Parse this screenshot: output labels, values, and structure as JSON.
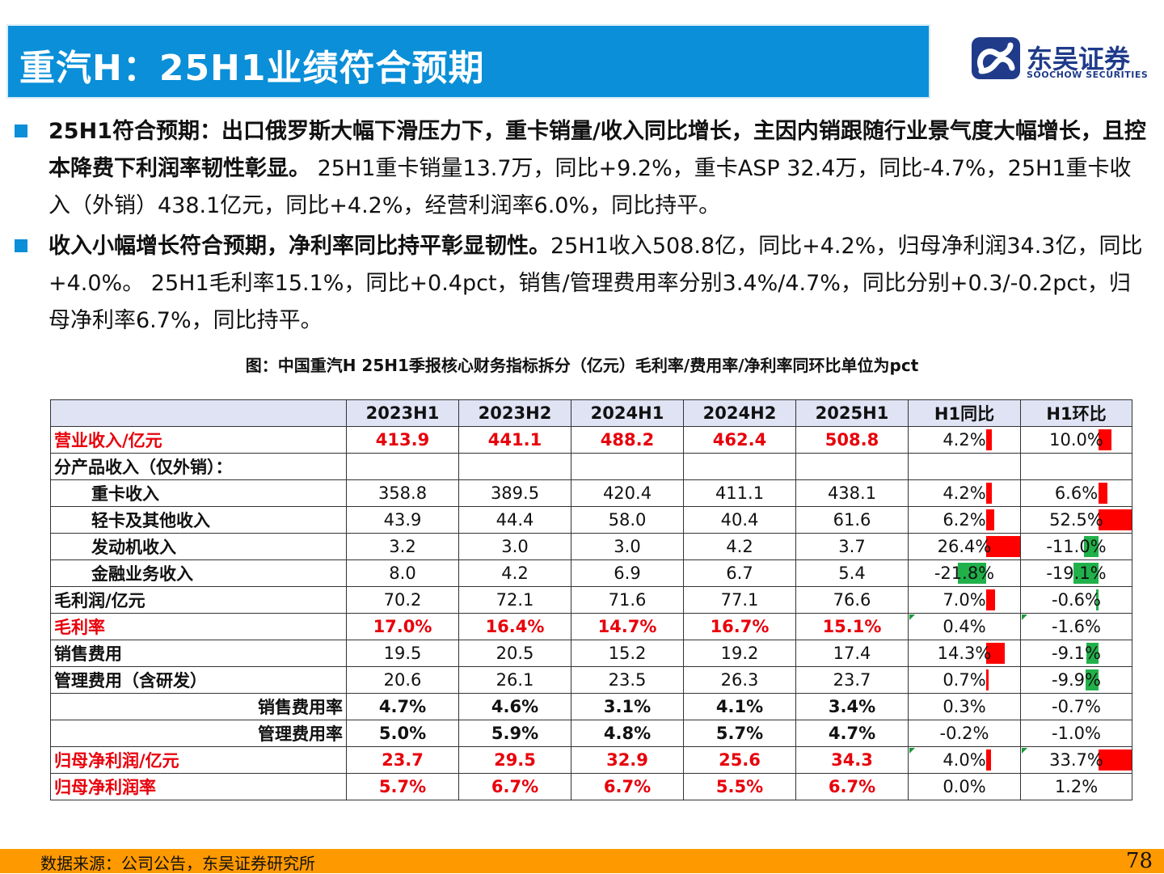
{
  "header": {
    "title": "重汽H：25H1业绩符合预期",
    "logo_cn": "东吴证券",
    "logo_en": "SOOCHOW SECURITIES"
  },
  "bullets": [
    {
      "bold": "25H1符合预期：出口俄罗斯大幅下滑压力下，重卡销量/收入同比增长，主因内销跟随行业景气度大幅增长，且控本降费下利润率韧性彰显。",
      "text": " 25H1重卡销量13.7万，同比+9.2%，重卡ASP 32.4万，同比-4.7%，25H1重卡收入（外销）438.1亿元，同比+4.2%，经营利润率6.0%，同比持平。"
    },
    {
      "bold": "收入小幅增长符合预期，净利率同比持平彰显韧性。",
      "text": "25H1收入508.8亿，同比+4.2%，归母净利润34.3亿，同比+4.0%。 25H1毛利率15.1%，同比+0.4pct，销售/管理费用率分别3.4%/4.7%，同比分别+0.3/-0.2pct，归母净利率6.7%，同比持平。"
    }
  ],
  "figure_caption": "图：中国重汽H 25H1季报核心财务指标拆分（亿元）毛利率/费用率/净利率同环比单位为pct",
  "table": {
    "columns": [
      "",
      "2023H1",
      "2023H2",
      "2024H1",
      "2024H2",
      "2025H1",
      "H1同比",
      "H1环比"
    ],
    "rows": [
      {
        "label": "营业收入/亿元",
        "style": "red",
        "indent": "none",
        "values": [
          "413.9",
          "441.1",
          "488.2",
          "462.4",
          "508.8"
        ],
        "yoy": "4.2%",
        "yoy_v": 4.2,
        "qoq": "10.0%",
        "qoq_v": 10.0,
        "tri": false
      },
      {
        "label": "分产品收入（仅外销）：",
        "style": "plain",
        "indent": "none",
        "values": [
          "",
          "",
          "",
          "",
          ""
        ],
        "yoy": "",
        "yoy_v": 0,
        "qoq": "",
        "qoq_v": 0,
        "tri": false
      },
      {
        "label": "重卡收入",
        "style": "plain",
        "indent": "indent",
        "values": [
          "358.8",
          "389.5",
          "420.4",
          "411.1",
          "438.1"
        ],
        "yoy": "4.2%",
        "yoy_v": 4.2,
        "qoq": "6.6%",
        "qoq_v": 6.6,
        "tri": false
      },
      {
        "label": "轻卡及其他收入",
        "style": "plain",
        "indent": "indent",
        "values": [
          "43.9",
          "44.4",
          "58.0",
          "40.4",
          "61.6"
        ],
        "yoy": "6.2%",
        "yoy_v": 6.2,
        "qoq": "52.5%",
        "qoq_v": 52.5,
        "tri": false
      },
      {
        "label": "发动机收入",
        "style": "plain",
        "indent": "indent",
        "values": [
          "3.2",
          "3.0",
          "3.0",
          "4.2",
          "3.7"
        ],
        "yoy": "26.4%",
        "yoy_v": 26.4,
        "qoq": "-11.0%",
        "qoq_v": -11.0,
        "tri": false
      },
      {
        "label": "金融业务收入",
        "style": "plain",
        "indent": "indent",
        "values": [
          "8.0",
          "4.2",
          "6.9",
          "6.7",
          "5.4"
        ],
        "yoy": "-21.8%",
        "yoy_v": -21.8,
        "qoq": "-19.1%",
        "qoq_v": -19.1,
        "tri": false
      },
      {
        "label": "毛利润/亿元",
        "style": "plain",
        "indent": "none",
        "values": [
          "70.2",
          "72.1",
          "71.6",
          "77.1",
          "76.6"
        ],
        "yoy": "7.0%",
        "yoy_v": 7.0,
        "qoq": "-0.6%",
        "qoq_v": -0.6,
        "tri": false
      },
      {
        "label": "毛利率",
        "style": "red",
        "indent": "none",
        "values": [
          "17.0%",
          "16.4%",
          "14.7%",
          "16.7%",
          "15.1%"
        ],
        "yoy": "0.4%",
        "yoy_v": 0,
        "qoq": "-1.6%",
        "qoq_v": 0,
        "tri": true
      },
      {
        "label": "销售费用",
        "style": "plain",
        "indent": "none",
        "values": [
          "19.5",
          "20.5",
          "15.2",
          "19.2",
          "17.4"
        ],
        "yoy": "14.3%",
        "yoy_v": 14.3,
        "qoq": "-9.1%",
        "qoq_v": -9.1,
        "tri": false
      },
      {
        "label": "管理费用（含研发）",
        "style": "plain",
        "indent": "none",
        "values": [
          "20.6",
          "26.1",
          "23.5",
          "26.3",
          "23.7"
        ],
        "yoy": "0.7%",
        "yoy_v": 0.7,
        "qoq": "-9.9%",
        "qoq_v": -9.9,
        "tri": false
      },
      {
        "label": "销售费用率",
        "style": "boldrow",
        "indent": "right",
        "values": [
          "4.7%",
          "4.6%",
          "3.1%",
          "4.1%",
          "3.4%"
        ],
        "yoy": "0.3%",
        "yoy_v": 0,
        "qoq": "-0.7%",
        "qoq_v": 0,
        "tri": false
      },
      {
        "label": "管理费用率",
        "style": "boldrow",
        "indent": "right",
        "values": [
          "5.0%",
          "5.9%",
          "4.8%",
          "5.7%",
          "4.7%"
        ],
        "yoy": "-0.2%",
        "yoy_v": 0,
        "qoq": "-1.0%",
        "qoq_v": 0,
        "tri": false
      },
      {
        "label": "归母净利润/亿元",
        "style": "red",
        "indent": "none",
        "values": [
          "23.7",
          "29.5",
          "32.9",
          "25.6",
          "34.3"
        ],
        "yoy": "4.0%",
        "yoy_v": 4.0,
        "qoq": "33.7%",
        "qoq_v": 33.7,
        "tri": true
      },
      {
        "label": "归母净利润率",
        "style": "red",
        "indent": "none",
        "values": [
          "5.7%",
          "6.7%",
          "6.7%",
          "5.5%",
          "6.7%"
        ],
        "yoy": "0.0%",
        "yoy_v": 0,
        "qoq": "1.2%",
        "qoq_v": 0,
        "tri": false
      }
    ]
  },
  "footer": {
    "source": "数据来源：公司公告，东吴证券研究所",
    "page": "78"
  },
  "colors": {
    "accent": "#0a8fd8",
    "highlight": "#e8000b",
    "positive_bar": "#ff0000",
    "negative_bar": "#21b14b",
    "footer": "#ff9900"
  }
}
